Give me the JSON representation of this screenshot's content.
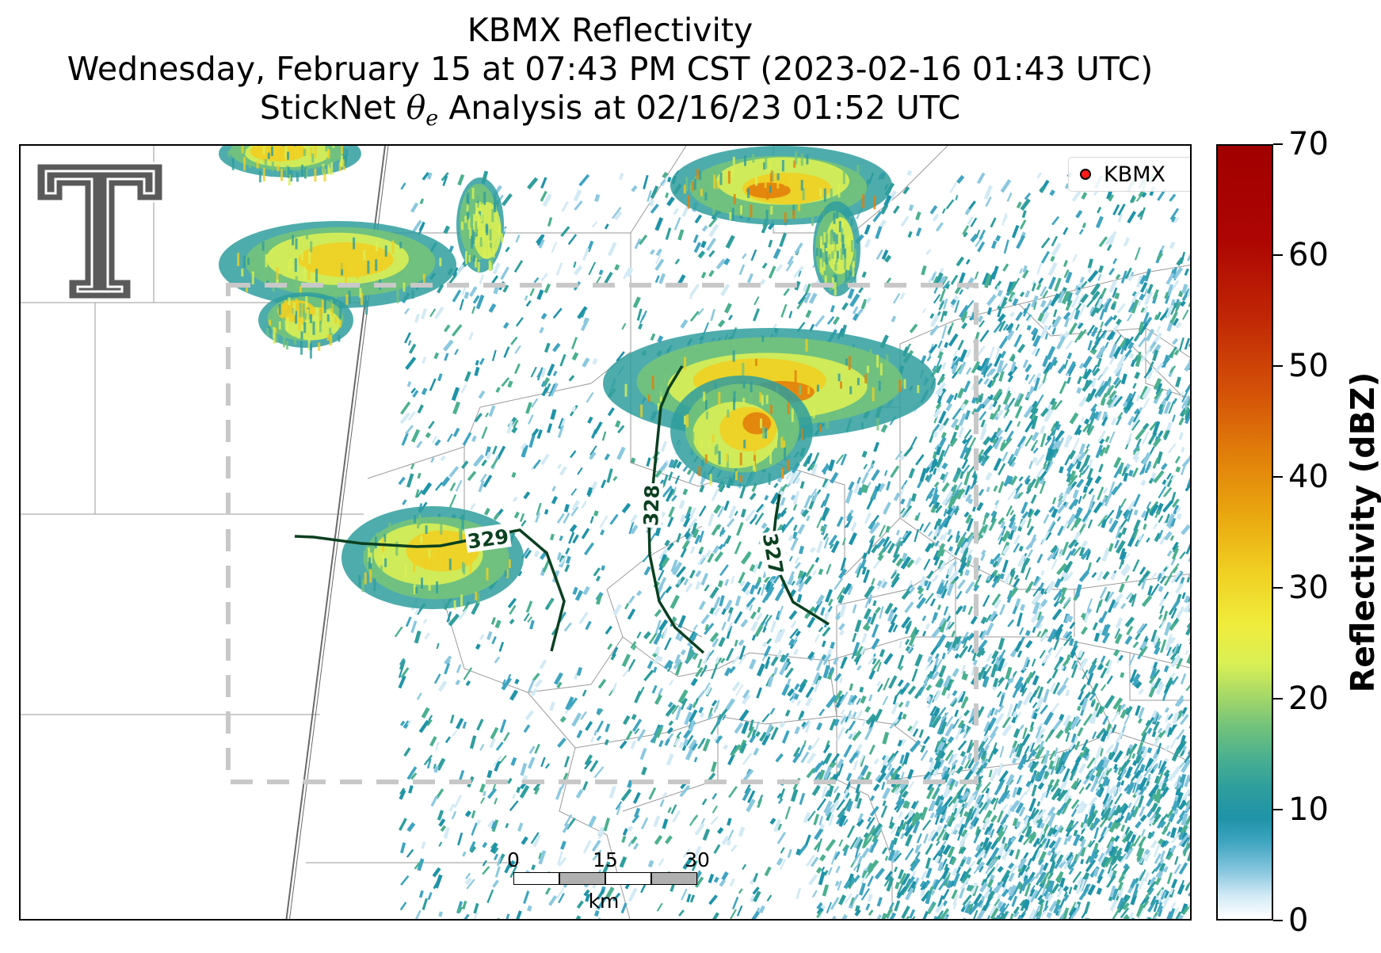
{
  "title": {
    "line1": "KBMX Reflectivity",
    "line2": "Wednesday, February 15 at 07:43 PM CST (2023-02-16 01:43 UTC)",
    "line3_prefix": "StickNet ",
    "line3_symbol": "θ",
    "line3_subscript": "e",
    "line3_suffix": " Analysis at 02/16/23 01:52 UTC"
  },
  "legend": {
    "label": "KBMX",
    "marker_color": "#ff1a1a"
  },
  "contours": [
    {
      "label": "329",
      "color": "#0b4020"
    },
    {
      "label": "328",
      "color": "#0b4020"
    },
    {
      "label": "327",
      "color": "#0b4020"
    }
  ],
  "scale_bar": {
    "ticks": [
      "0",
      "15",
      "30"
    ],
    "unit": "km"
  },
  "colorbar": {
    "title": "Reflectivity (dBZ)",
    "ticks": [
      "0",
      "10",
      "20",
      "30",
      "40",
      "50",
      "60",
      "70"
    ],
    "min": 0,
    "max": 70
  },
  "analysis_box": {
    "style": "dashed",
    "color": "#c8c8c8"
  },
  "logo": {
    "name": "texas-tech-double-t-logo",
    "color": "#5a5a5a"
  }
}
